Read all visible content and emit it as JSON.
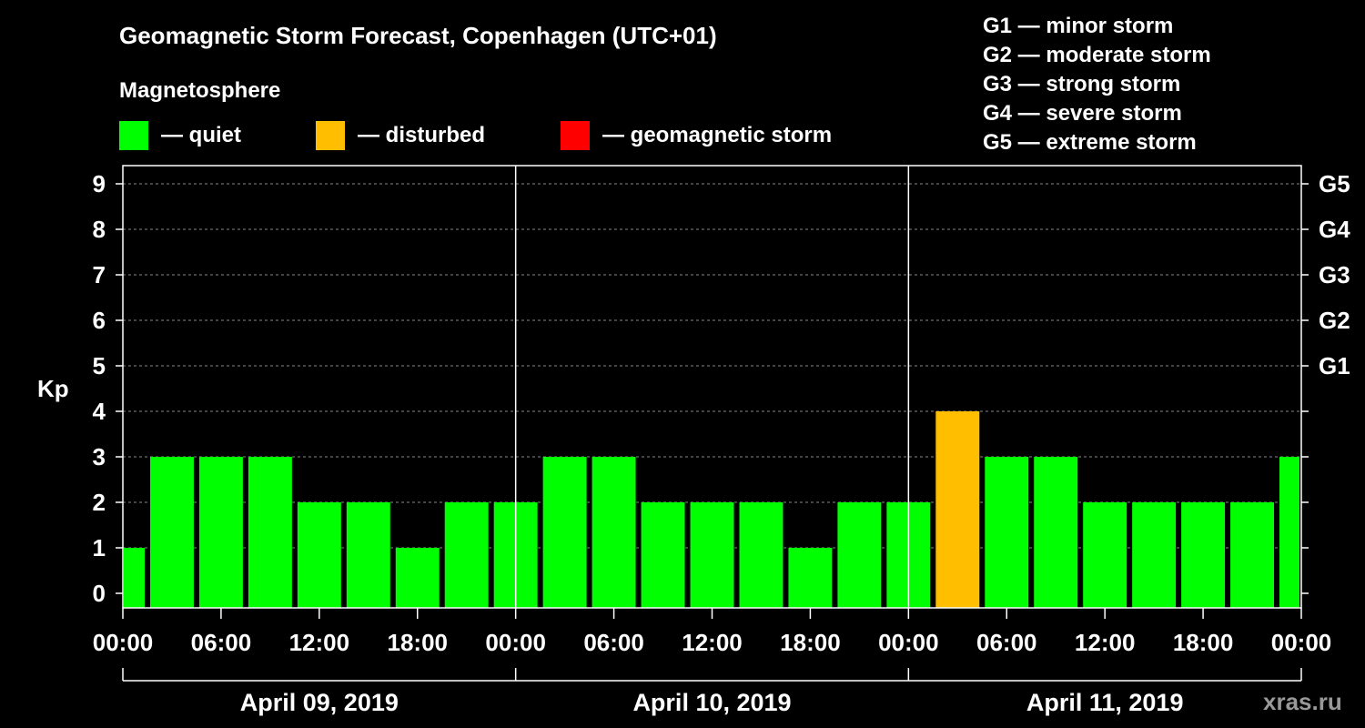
{
  "title": "Geomagnetic Storm Forecast, Copenhagen (UTC+01)",
  "legend": {
    "heading": "Magnetosphere",
    "items": [
      {
        "label": "— quiet",
        "color": "#00ff00"
      },
      {
        "label": "— disturbed",
        "color": "#ffbf00"
      },
      {
        "label": "— geomagnetic storm",
        "color": "#ff0000"
      }
    ]
  },
  "storm_scale": [
    "G1 — minor storm",
    "G2 — moderate storm",
    "G3 — strong storm",
    "G4 — severe storm",
    "G5 — extreme storm"
  ],
  "watermark": "xras.ru",
  "chart_data": {
    "type": "bar",
    "ylabel": "Kp",
    "ylim": [
      0,
      9
    ],
    "yticks": [
      "0",
      "1",
      "2",
      "3",
      "4",
      "5",
      "6",
      "7",
      "8",
      "9"
    ],
    "right_ticks": [
      {
        "kp": 5,
        "label": "G1"
      },
      {
        "kp": 6,
        "label": "G2"
      },
      {
        "kp": 7,
        "label": "G3"
      },
      {
        "kp": 8,
        "label": "G4"
      },
      {
        "kp": 9,
        "label": "G5"
      }
    ],
    "xtick_labels": [
      "00:00",
      "06:00",
      "12:00",
      "18:00",
      "00:00",
      "06:00",
      "12:00",
      "18:00",
      "00:00",
      "06:00",
      "12:00",
      "18:00",
      "00:00"
    ],
    "days": [
      "April 09, 2019",
      "April 10, 2019",
      "April 11, 2019"
    ],
    "bar_start_hour": 1.5,
    "bar_width_hours": 3,
    "values": [
      1,
      3,
      3,
      3,
      2,
      2,
      1,
      2,
      2,
      3,
      3,
      2,
      2,
      2,
      1,
      2,
      2,
      4,
      3,
      3,
      2,
      2,
      2,
      2,
      3
    ],
    "colors": {
      "quiet": "#00ff00",
      "disturbed": "#ffbf00",
      "storm": "#ff0000"
    },
    "grid": true
  }
}
